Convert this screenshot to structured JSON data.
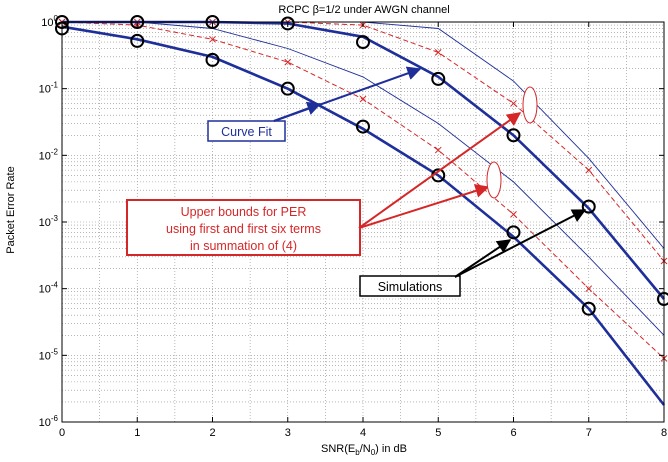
{
  "chart_data": {
    "type": "line",
    "title": "RCPC β=1/2 under  AWGN channel",
    "xlabel": {
      "pre": "SNR(E",
      "sub1": "b",
      "mid": "/N",
      "sub2": "0",
      "post": ")  in dB"
    },
    "ylabel": "Packet Error Rate",
    "xlim": [
      0,
      8
    ],
    "ylim": [
      1e-06,
      1
    ],
    "yscale": "log",
    "grid": true,
    "x_ticks": [
      "0",
      "1",
      "2",
      "3",
      "4",
      "5",
      "6",
      "7",
      "8"
    ],
    "y_ticks": [
      {
        "base": "10",
        "exp": "0"
      },
      {
        "base": "10",
        "exp": "-1"
      },
      {
        "base": "10",
        "exp": "-2"
      },
      {
        "base": "10",
        "exp": "-3"
      },
      {
        "base": "10",
        "exp": "-4"
      },
      {
        "base": "10",
        "exp": "-5"
      },
      {
        "base": "10",
        "exp": "-6"
      }
    ],
    "series": [
      {
        "style": "curve-fit",
        "color": "#1f2f9a",
        "x": [
          0,
          1,
          2,
          3,
          4,
          5,
          6,
          7,
          8
        ],
        "y": [
          0.85,
          0.55,
          0.3,
          0.1,
          0.025,
          0.005,
          0.0006,
          5e-05,
          1.8e-06
        ]
      },
      {
        "style": "curve-fit",
        "color": "#1f2f9a",
        "x": [
          0,
          1,
          2,
          3,
          4,
          5,
          6,
          7,
          8
        ],
        "y": [
          1,
          1,
          1,
          0.95,
          0.6,
          0.15,
          0.02,
          0.0016,
          7e-05
        ]
      },
      {
        "style": "simulation",
        "color": "#000000",
        "x": [
          0,
          1,
          2,
          3,
          4,
          5,
          6,
          7
        ],
        "y": [
          0.8,
          0.52,
          0.27,
          0.1,
          0.027,
          0.005,
          0.0007,
          5e-05
        ]
      },
      {
        "style": "simulation",
        "color": "#000000",
        "x": [
          0,
          1,
          2,
          3,
          4,
          5,
          6,
          7,
          8
        ],
        "y": [
          1,
          1,
          1,
          0.95,
          0.5,
          0.14,
          0.02,
          0.0017,
          7e-05
        ]
      },
      {
        "style": "bound-first-term",
        "color": "#d62728",
        "x": [
          0,
          1,
          2,
          3,
          4,
          5,
          6,
          7,
          8
        ],
        "y": [
          1,
          0.9,
          0.55,
          0.25,
          0.07,
          0.012,
          0.0013,
          0.0001,
          9e-06
        ]
      },
      {
        "style": "bound-first-term",
        "color": "#d62728",
        "x": [
          0,
          1,
          2,
          3,
          4,
          5,
          6,
          7,
          8
        ],
        "y": [
          1,
          1,
          1,
          1,
          0.9,
          0.35,
          0.06,
          0.006,
          0.00026
        ]
      },
      {
        "style": "bound-six-terms",
        "color": "#1f2f9a",
        "x": [
          0,
          1,
          2,
          3,
          4,
          5,
          6,
          7,
          8
        ],
        "y": [
          1,
          1,
          0.8,
          0.4,
          0.15,
          0.03,
          0.004,
          0.0003,
          2e-05
        ]
      },
      {
        "style": "bound-six-terms",
        "color": "#1f2f9a",
        "x": [
          0,
          1,
          2,
          3,
          4,
          5,
          6,
          7,
          8
        ],
        "y": [
          1,
          1,
          1,
          1,
          1,
          0.8,
          0.13,
          0.009,
          0.0004
        ]
      }
    ],
    "annotations": [
      {
        "name": "curve-fit-label",
        "lines": [
          "Curve Fit"
        ],
        "color": "#1f2f9a"
      },
      {
        "name": "upper-bounds-label",
        "lines": [
          "Upper bounds for  PER",
          "using first and first six terms",
          "in summation of (4)"
        ],
        "color": "#d62728"
      },
      {
        "name": "simulations-label",
        "lines": [
          "Simulations"
        ],
        "color": "#000000"
      }
    ]
  }
}
